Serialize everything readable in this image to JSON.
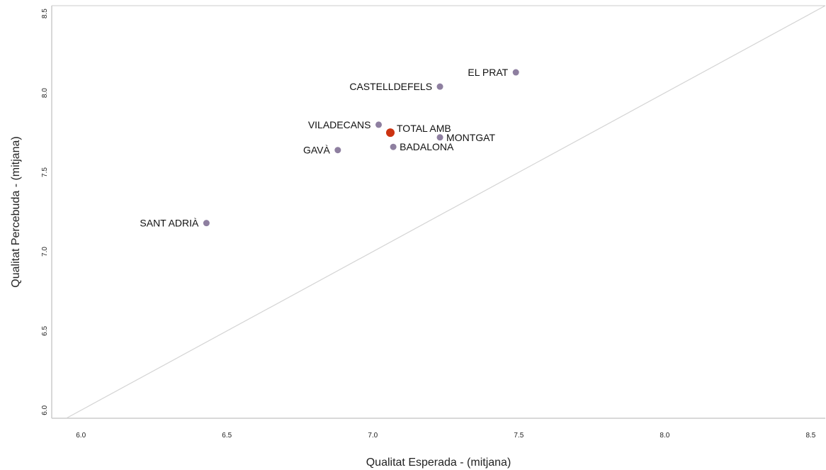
{
  "chart_data": {
    "type": "scatter",
    "title": "",
    "xlabel": "Qualitat Esperada - (mitjana)",
    "ylabel": "Qualitat Percebuda - (mitjana)",
    "xlim": [
      5.9,
      8.55
    ],
    "ylim": [
      5.95,
      8.55
    ],
    "xticks": [
      6.0,
      6.5,
      7.0,
      7.5,
      8.0,
      8.5
    ],
    "yticks": [
      6.0,
      6.5,
      7.0,
      7.5,
      8.0,
      8.5
    ],
    "xtick_labels": [
      "6.0",
      "6.5",
      "7.0",
      "7.5",
      "8.0",
      "8.5"
    ],
    "ytick_labels": [
      "6.0",
      "6.5",
      "7.0",
      "7.5",
      "8.0",
      "8.5"
    ],
    "grid": false,
    "reference_line": "y = x",
    "colors": {
      "point": "#8e7fa0",
      "highlight": "#cc3311",
      "reference": "#d4d4d4",
      "frame": "#cccccc"
    },
    "points": [
      {
        "label": "EL PRAT",
        "x": 7.49,
        "y": 8.13,
        "highlight": false,
        "label_side": "left"
      },
      {
        "label": "CASTELLDEFELS",
        "x": 7.23,
        "y": 8.04,
        "highlight": false,
        "label_side": "left"
      },
      {
        "label": "VILADECANS",
        "x": 7.02,
        "y": 7.8,
        "highlight": false,
        "label_side": "left"
      },
      {
        "label": "TOTAL AMB",
        "x": 7.06,
        "y": 7.75,
        "highlight": true,
        "label_side": "right-up"
      },
      {
        "label": "MONTGAT",
        "x": 7.23,
        "y": 7.72,
        "highlight": false,
        "label_side": "right"
      },
      {
        "label": "BADALONA",
        "x": 7.07,
        "y": 7.66,
        "highlight": false,
        "label_side": "right"
      },
      {
        "label": "GAVÀ",
        "x": 6.88,
        "y": 7.64,
        "highlight": false,
        "label_side": "left"
      },
      {
        "label": "SANT ADRIÀ",
        "x": 6.43,
        "y": 7.18,
        "highlight": false,
        "label_side": "left"
      }
    ]
  }
}
